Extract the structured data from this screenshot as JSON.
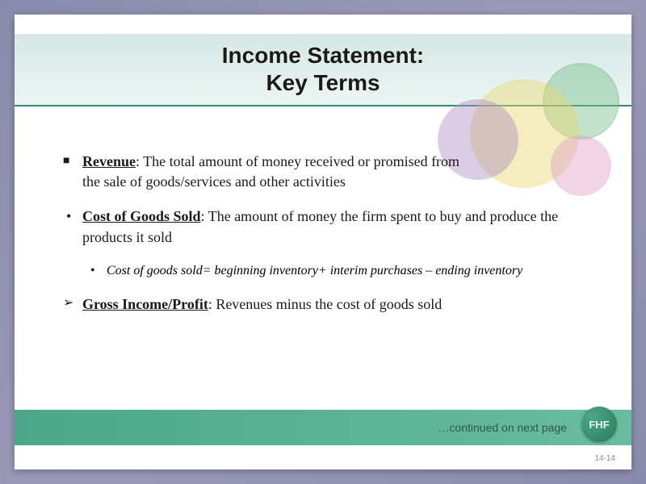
{
  "title": {
    "line1": "Income Statement:",
    "line2": "Key Terms"
  },
  "items": [
    {
      "term": "Revenue",
      "text": ": The total amount of money received or promised from the sale of goods/services and other activities"
    },
    {
      "term": "Cost of Goods Sold",
      "text": ": The amount of money the firm spent to buy and produce the products it sold"
    }
  ],
  "subitem": "Cost of goods sold= beginning inventory+ interim purchases – ending inventory",
  "gross": {
    "term": "Gross Income/Profit",
    "text": ": Revenues minus the cost of goods sold"
  },
  "footer": {
    "continued": "…continued on next page",
    "badge": "FHF",
    "pagenum": "14-14"
  },
  "colors": {
    "title_band_top": "#d5e8e4",
    "title_band_bottom": "#ecf5f3",
    "footer_band_left": "#4aa888",
    "footer_band_right": "#6abca0",
    "circle_yellow": "#e8d870",
    "circle_purple": "#b090c0",
    "circle_green": "#7ac090",
    "circle_pink": "#e0a0c8",
    "background_gradient": "#8a8aad"
  }
}
